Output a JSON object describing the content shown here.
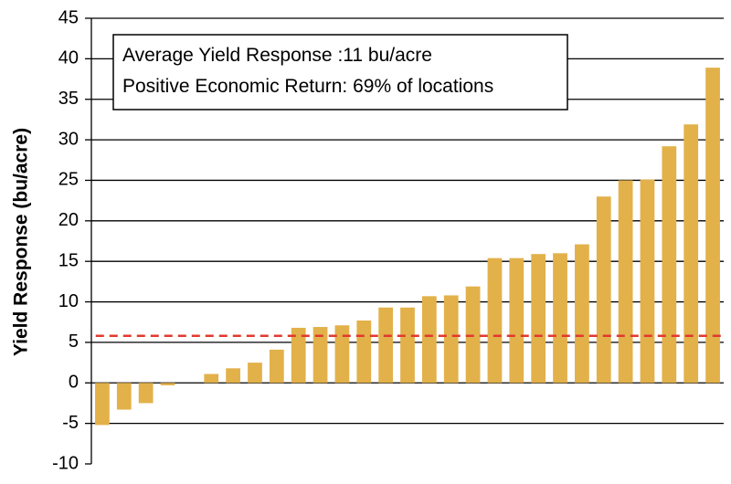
{
  "chart_data": {
    "type": "bar",
    "title": "",
    "xlabel": "",
    "ylabel": "Yield Response (bu/acre)",
    "ylim": [
      -10,
      45
    ],
    "yticks": [
      -10,
      -5,
      0,
      5,
      10,
      15,
      20,
      25,
      30,
      35,
      40,
      45
    ],
    "grid": "horizontal",
    "legend": "none",
    "values": [
      -5.2,
      -3.3,
      -2.5,
      -0.3,
      0,
      1.1,
      1.8,
      2.5,
      4.1,
      6.8,
      6.9,
      7.1,
      7.7,
      9.3,
      9.3,
      10.7,
      10.8,
      11.9,
      15.4,
      15.4,
      15.9,
      16.0,
      17.1,
      23.0,
      25.0,
      25.1,
      29.2,
      31.9,
      38.9
    ],
    "reference_line": {
      "value": 5.8,
      "style": "dashed"
    },
    "annotations": [
      "Average Yield Response :11 bu/acre",
      "Positive Economic Return: 69% of locations"
    ],
    "colors": {
      "bar": "#e2b14a",
      "reference_line": "#e03a2e",
      "grid": "#000000",
      "axis": "#000000"
    }
  }
}
